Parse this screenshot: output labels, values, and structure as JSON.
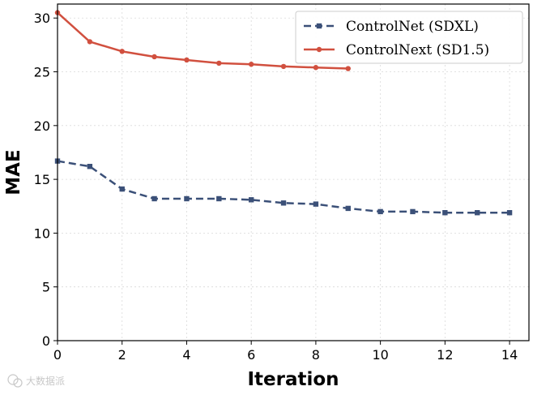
{
  "chart_data": {
    "type": "line",
    "title": "",
    "xlabel": "Iteration",
    "ylabel": "MAE",
    "xlim": [
      0,
      14.6
    ],
    "ylim": [
      0,
      31.3
    ],
    "xticks": [
      "0",
      "2",
      "4",
      "6",
      "8",
      "10",
      "12",
      "14"
    ],
    "yticks": [
      "0",
      "5",
      "10",
      "15",
      "20",
      "25",
      "30"
    ],
    "grid": true,
    "legend_position": "top-right",
    "series": [
      {
        "name": "ControlNet (SDXL)",
        "color": "#3b5078",
        "line_style": "dashed",
        "marker": "square",
        "x": [
          0,
          1,
          2,
          3,
          4,
          5,
          6,
          7,
          8,
          9,
          10,
          11,
          12,
          13,
          14
        ],
        "values": [
          16.7,
          16.2,
          14.1,
          13.2,
          13.2,
          13.2,
          13.1,
          12.8,
          12.7,
          12.3,
          12.0,
          12.0,
          11.9,
          11.9,
          11.9
        ]
      },
      {
        "name": "ControlNext (SD1.5)",
        "color": "#d1503f",
        "line_style": "solid",
        "marker": "circle",
        "x": [
          0,
          1,
          2,
          3,
          4,
          5,
          6,
          7,
          8,
          9
        ],
        "values": [
          30.5,
          27.8,
          26.9,
          26.4,
          26.1,
          25.8,
          25.7,
          25.5,
          25.4,
          25.3
        ]
      }
    ]
  },
  "watermark": "大数据派"
}
